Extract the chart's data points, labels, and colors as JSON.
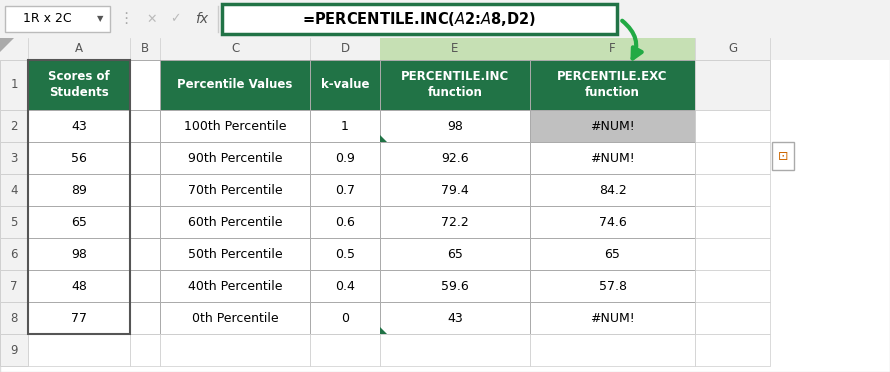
{
  "title_bar": "1R x 2C",
  "formula": "=PERCENTILE.INC($A$2:$A$8,D2)",
  "col_headers": [
    "A",
    "B",
    "C",
    "D",
    "E",
    "F",
    "G"
  ],
  "header_row": [
    "Scores of\nStudents",
    "",
    "Percentile Values",
    "k-value",
    "PERCENTILE.INC\nfunction",
    "PERCENTILE.EXC\nfunction"
  ],
  "data_rows": [
    [
      "43",
      "",
      "100th Percentile",
      "1",
      "98",
      "#NUM!"
    ],
    [
      "56",
      "",
      "90th Percentile",
      "0.9",
      "92.6",
      "#NUM!"
    ],
    [
      "89",
      "",
      "70th Percentile",
      "0.7",
      "79.4",
      "84.2"
    ],
    [
      "65",
      "",
      "60th Percentile",
      "0.6",
      "72.2",
      "74.6"
    ],
    [
      "98",
      "",
      "50th Percentile",
      "0.5",
      "65",
      "65"
    ],
    [
      "48",
      "",
      "40th Percentile",
      "0.4",
      "59.6",
      "57.8"
    ],
    [
      "77",
      "",
      "0th Percentile",
      "0",
      "43",
      "#NUM!"
    ]
  ],
  "green": "#217346",
  "silver": "#C0C0C0",
  "white": "#FFFFFF",
  "light_gray": "#F2F2F2",
  "col_header_highlight": "#C6E0B4",
  "arrow_color": "#22AA44",
  "formula_border": "#217346",
  "row_num_bg": "#F2F2F2",
  "toolbar_bg": "#F2F2F2",
  "cell_border": "#D0D0D0",
  "thick_border": "#888888"
}
